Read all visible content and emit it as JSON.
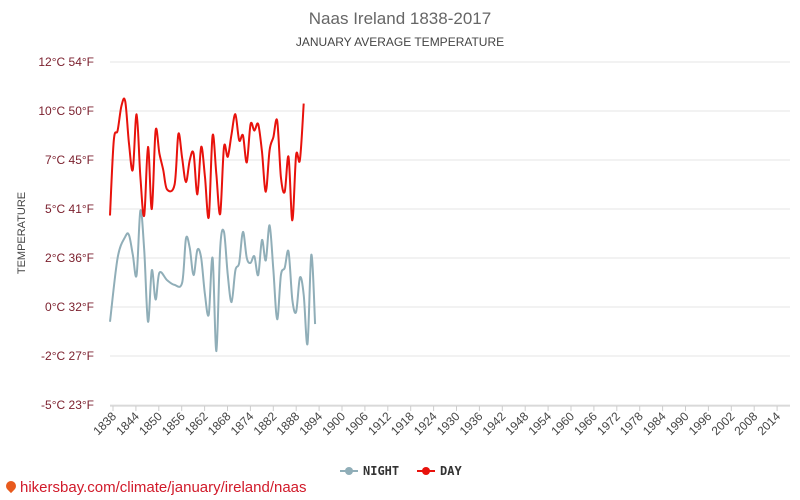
{
  "chart_data": {
    "type": "line",
    "title": "Naas Ireland 1838-2017",
    "subtitle": "JANUARY AVERAGE TEMPERATURE",
    "ylabel": "TEMPERATURE",
    "ylim": [
      -5,
      12
    ],
    "y_ticks": [
      {
        "value": 12,
        "label": "12°C 54°F"
      },
      {
        "value": 10,
        "label": "10°C 50°F"
      },
      {
        "value": 7,
        "label": "7°C 45°F"
      },
      {
        "value": 5,
        "label": "5°C 41°F"
      },
      {
        "value": 2,
        "label": "2°C 36°F"
      },
      {
        "value": 0,
        "label": "0°C 32°F"
      },
      {
        "value": -2,
        "label": "-2°C 27°F"
      },
      {
        "value": -5,
        "label": "-5°C 23°F"
      }
    ],
    "x_ticks": [
      "1838",
      "1844",
      "1850",
      "1856",
      "1862",
      "1868",
      "1874",
      "1882",
      "1888",
      "1894",
      "1900",
      "1906",
      "1912",
      "1918",
      "1924",
      "1930",
      "1936",
      "1942",
      "1948",
      "1954",
      "1960",
      "1966",
      "1972",
      "1978",
      "1984",
      "1990",
      "1996",
      "2002",
      "2008",
      "2014"
    ],
    "x_range": [
      1838,
      2017
    ],
    "legend_position": "bottom",
    "series": [
      {
        "name": "NIGHT",
        "color": "#90aeb8",
        "points": [
          [
            1838,
            -0.6
          ],
          [
            1840,
            2
          ],
          [
            1842,
            3.3
          ],
          [
            1843,
            3.4
          ],
          [
            1844,
            2.2
          ],
          [
            1845,
            1.3
          ],
          [
            1846,
            4.9
          ],
          [
            1847,
            2.5
          ],
          [
            1848,
            -0.6
          ],
          [
            1849,
            1.5
          ],
          [
            1850,
            0.3
          ],
          [
            1851,
            1.4
          ],
          [
            1853,
            1.1
          ],
          [
            1855,
            0.9
          ],
          [
            1857,
            1.0
          ],
          [
            1858,
            3.2
          ],
          [
            1859,
            2.6
          ],
          [
            1860,
            1.3
          ],
          [
            1861,
            2.5
          ],
          [
            1862,
            2.0
          ],
          [
            1863,
            0.5
          ],
          [
            1864,
            -0.3
          ],
          [
            1865,
            2.0
          ],
          [
            1866,
            -1.8
          ],
          [
            1867,
            2.6
          ],
          [
            1868,
            3.6
          ],
          [
            1869,
            1.3
          ],
          [
            1870,
            0.2
          ],
          [
            1871,
            1.5
          ],
          [
            1872,
            1.8
          ],
          [
            1873,
            3.6
          ],
          [
            1874,
            2.0
          ],
          [
            1875,
            1.8
          ],
          [
            1876,
            2.1
          ],
          [
            1877,
            1.3
          ],
          [
            1878,
            3.1
          ],
          [
            1879,
            1.9
          ],
          [
            1880,
            4.0
          ],
          [
            1881,
            1.5
          ],
          [
            1882,
            -0.5
          ],
          [
            1883,
            1.3
          ],
          [
            1884,
            1.6
          ],
          [
            1885,
            2.4
          ],
          [
            1886,
            0.3
          ],
          [
            1887,
            -0.2
          ],
          [
            1888,
            1.2
          ],
          [
            1889,
            0.5
          ],
          [
            1890,
            -1.5
          ],
          [
            1891,
            2.2
          ],
          [
            1892,
            -0.7
          ]
        ]
      },
      {
        "name": "DAY",
        "color": "#e8120c",
        "points": [
          [
            1838,
            4.6
          ],
          [
            1839,
            8.2
          ],
          [
            1840,
            8.8
          ],
          [
            1841,
            10.2
          ],
          [
            1842,
            10.4
          ],
          [
            1843,
            8.0
          ],
          [
            1844,
            6.6
          ],
          [
            1845,
            9.8
          ],
          [
            1846,
            6.3
          ],
          [
            1847,
            4.6
          ],
          [
            1848,
            7.8
          ],
          [
            1849,
            5.0
          ],
          [
            1850,
            8.8
          ],
          [
            1851,
            7.4
          ],
          [
            1852,
            6.6
          ],
          [
            1853,
            5.8
          ],
          [
            1855,
            6.0
          ],
          [
            1856,
            8.6
          ],
          [
            1857,
            7.1
          ],
          [
            1858,
            6.1
          ],
          [
            1859,
            7.0
          ],
          [
            1860,
            7.4
          ],
          [
            1861,
            5.6
          ],
          [
            1862,
            7.8
          ],
          [
            1863,
            6.3
          ],
          [
            1864,
            4.5
          ],
          [
            1865,
            8.5
          ],
          [
            1866,
            6.4
          ],
          [
            1867,
            4.7
          ],
          [
            1868,
            7.8
          ],
          [
            1869,
            7.2
          ],
          [
            1870,
            8.6
          ],
          [
            1871,
            9.8
          ],
          [
            1872,
            8.2
          ],
          [
            1873,
            8.5
          ],
          [
            1874,
            6.9
          ],
          [
            1875,
            9.2
          ],
          [
            1876,
            8.8
          ],
          [
            1877,
            9.2
          ],
          [
            1878,
            7.5
          ],
          [
            1879,
            5.7
          ],
          [
            1880,
            7.6
          ],
          [
            1881,
            8.4
          ],
          [
            1882,
            9.4
          ],
          [
            1883,
            6.3
          ],
          [
            1884,
            5.7
          ],
          [
            1885,
            7.2
          ],
          [
            1886,
            4.3
          ],
          [
            1887,
            7.3
          ],
          [
            1888,
            7.0
          ],
          [
            1889,
            10.3
          ]
        ]
      }
    ]
  },
  "legend": {
    "night_label": "NIGHT",
    "day_label": "DAY"
  },
  "source": "hikersbay.com/climate/january/ireland/naas"
}
